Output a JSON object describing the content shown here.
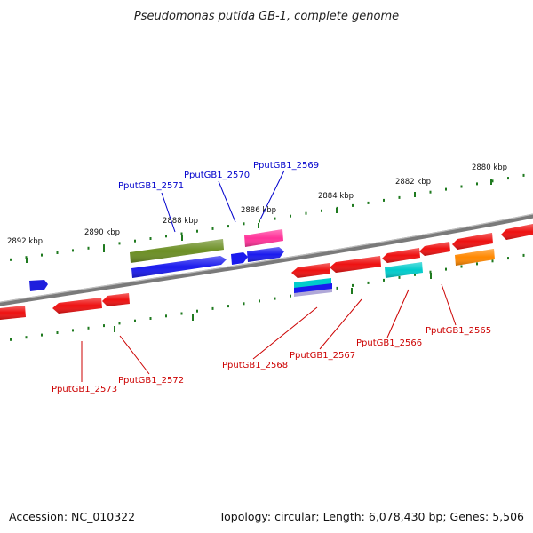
{
  "title": "Pseudomonas putida GB-1, complete genome",
  "footer": {
    "accession": "Accession: NC_010322",
    "topology": "Topology: circular; Length: 6,078,430 bp; Genes: 5,506"
  },
  "colors": {
    "background": "#ffffff",
    "backbone": "#808080",
    "tick": "#1f7a1f",
    "forward_label": "#0000cc",
    "reverse_label": "#cc0000"
  },
  "ticks": [
    {
      "label": "2892 kbp"
    },
    {
      "label": "2890 kbp"
    },
    {
      "label": "2888 kbp"
    },
    {
      "label": "2886 kbp"
    },
    {
      "label": "2884 kbp"
    },
    {
      "label": "2882 kbp"
    },
    {
      "label": "2880 kbp"
    }
  ],
  "gene_labels": [
    {
      "name": "PputGB1_2571",
      "strand": "forward"
    },
    {
      "name": "PputGB1_2570",
      "strand": "forward"
    },
    {
      "name": "PputGB1_2569",
      "strand": "forward"
    },
    {
      "name": "PputGB1_2573",
      "strand": "reverse"
    },
    {
      "name": "PputGB1_2572",
      "strand": "reverse"
    },
    {
      "name": "PputGB1_2568",
      "strand": "reverse"
    },
    {
      "name": "PputGB1_2567",
      "strand": "reverse"
    },
    {
      "name": "PputGB1_2566",
      "strand": "reverse"
    },
    {
      "name": "PputGB1_2565",
      "strand": "reverse"
    }
  ],
  "features": [
    {
      "id": "f1",
      "color": "#1f1fdd"
    },
    {
      "id": "f2",
      "color": "#6b8e23"
    },
    {
      "id": "f3",
      "color": "#1a1aee"
    },
    {
      "id": "f4",
      "color": "#1a1aee"
    },
    {
      "id": "f5",
      "color": "#1a1aee"
    },
    {
      "id": "f6",
      "color": "#ff3399"
    },
    {
      "id": "f7",
      "color": "#ee1111"
    },
    {
      "id": "f8",
      "color": "#ee1111"
    },
    {
      "id": "f9",
      "color": "#ee1111"
    },
    {
      "id": "f10",
      "color": "#ee1111"
    },
    {
      "id": "f11",
      "color": "#ee1111"
    },
    {
      "id": "f12",
      "color": "#ee1111"
    },
    {
      "id": "f13",
      "color": "#ee1111"
    },
    {
      "id": "f14",
      "color": "#ee1111"
    },
    {
      "id": "f15",
      "color": "#ee1111"
    },
    {
      "id": "f16",
      "color": "#00cccc"
    },
    {
      "id": "f17",
      "color": "#1a1aee"
    },
    {
      "id": "f18",
      "color": "#00cccc"
    },
    {
      "id": "f19",
      "color": "#ff8800"
    }
  ]
}
